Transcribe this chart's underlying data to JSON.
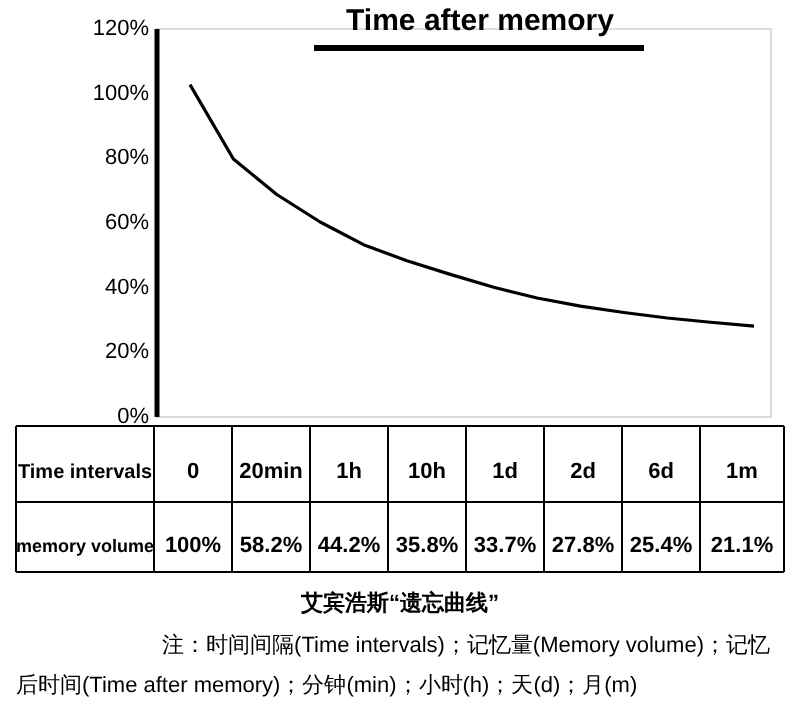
{
  "chart_data": {
    "type": "line",
    "title": "Time after memory",
    "categories": [
      null,
      null,
      null,
      null,
      null,
      null,
      null,
      null,
      null,
      null,
      null,
      null,
      null,
      null
    ],
    "values": [
      102.5,
      79.5,
      68.5,
      60,
      53,
      48,
      43.8,
      39.8,
      36.5,
      34,
      32,
      30.3,
      29,
      27.8
    ],
    "color": "#000000",
    "ylim": [
      0,
      120
    ],
    "yticks": [
      {
        "value": 0,
        "label": "0%"
      },
      {
        "value": 20,
        "label": "20%"
      },
      {
        "value": 40,
        "label": "40%"
      },
      {
        "value": 60,
        "label": "60%"
      },
      {
        "value": 80,
        "label": "80%"
      },
      {
        "value": 100,
        "label": "100%"
      },
      {
        "value": 120,
        "label": "120%"
      }
    ],
    "tick_labels": "y",
    "grid": false,
    "annotations": [
      "Time intervals",
      "0",
      "20min",
      "1h",
      "10h",
      "1d",
      "2d",
      "6d",
      "1m",
      "memory volume",
      "100%",
      "58.2%",
      "44.2%",
      "35.8%",
      "33.7%",
      "27.8%",
      "25.4%",
      "21.1%",
      "艾宾浩斯“遗忘曲线”",
      "注：时间间隔(Time  intervals)；记忆量(Memory volume)；记忆",
      "后时间(Time  after  memory)；分钟(min)；小时(h)；天(d)；月(m)"
    ]
  }
}
